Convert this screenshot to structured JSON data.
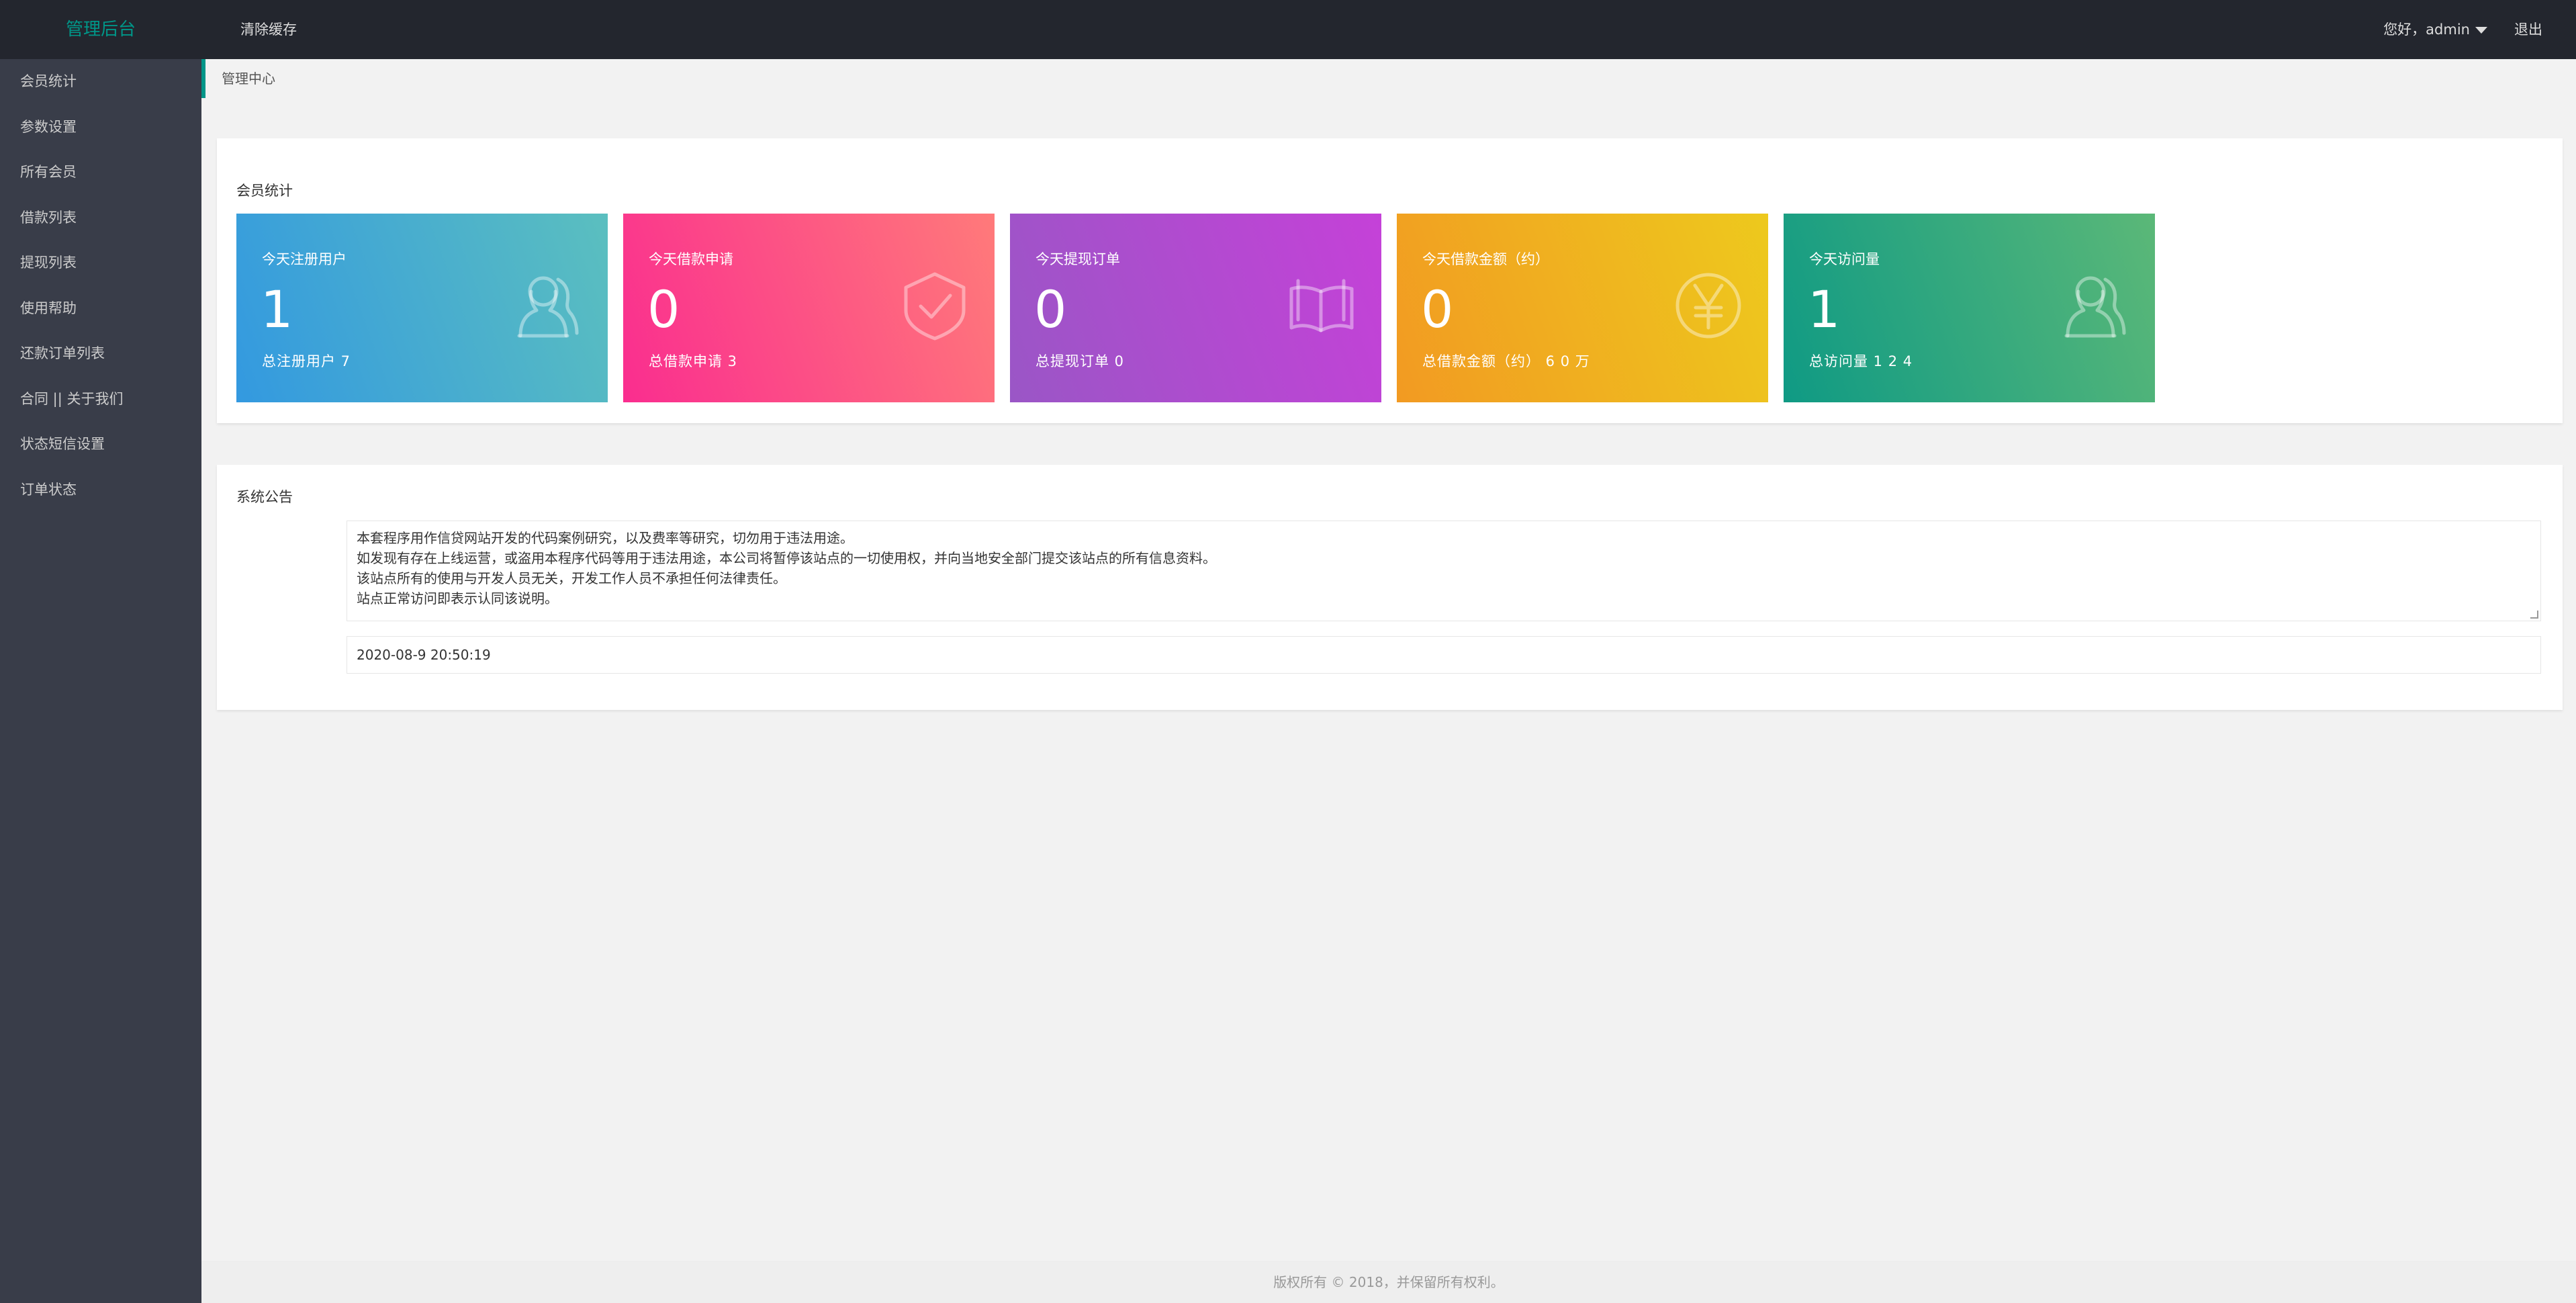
{
  "header": {
    "logo": "管理后台",
    "clear_cache": "清除缓存",
    "greeting": "您好，admin",
    "logout": "退出"
  },
  "sidebar": {
    "items": [
      {
        "label": "会员统计"
      },
      {
        "label": "参数设置"
      },
      {
        "label": "所有会员"
      },
      {
        "label": "借款列表"
      },
      {
        "label": "提现列表"
      },
      {
        "label": "使用帮助"
      },
      {
        "label": "还款订单列表"
      },
      {
        "label": "合同 || 关于我们"
      },
      {
        "label": "状态短信设置"
      },
      {
        "label": "订单状态"
      }
    ]
  },
  "breadcrumb": "管理中心",
  "stats": {
    "title": "会员统计",
    "boxes": [
      {
        "label": "今天注册用户",
        "value": "1",
        "total": "总注册用户 7",
        "icon": "users-icon",
        "colors": [
          "#3399e0",
          "#5bbfbf"
        ]
      },
      {
        "label": "今天借款申请",
        "value": "0",
        "total": "总借款申请 3",
        "icon": "shield-check-icon",
        "colors": [
          "#fa2d8f",
          "#ff7a7a"
        ]
      },
      {
        "label": "今天提现订单",
        "value": "0",
        "total": "总提现订单 0",
        "icon": "book-icon",
        "colors": [
          "#9a56c6",
          "#c541d8"
        ]
      },
      {
        "label": "今天借款金额（约）",
        "value": "0",
        "total": "总借款金额（约） 6 0 万",
        "icon": "yen-icon",
        "colors": [
          "#f29a22",
          "#edc91d"
        ]
      },
      {
        "label": "今天访问量",
        "value": "1",
        "total": "总访问量 1 2 4",
        "icon": "users-icon",
        "colors": [
          "#0f9a84",
          "#5bb878"
        ]
      }
    ]
  },
  "notice": {
    "title": "系统公告",
    "content": "本套程序用作信贷网站开发的代码案例研究，以及费率等研究，切勿用于违法用途。\n如发现有存在上线运营，或盗用本程序代码等用于违法用途，本公司将暂停该站点的一切使用权，并向当地安全部门提交该站点的所有信息资料。\n该站点所有的使用与开发人员无关，开发工作人员不承担任何法律责任。\n站点正常访问即表示认同该说明。",
    "date": "2020-08-9 20:50:19"
  },
  "footer": "版权所有 © 2018，并保留所有权利。"
}
